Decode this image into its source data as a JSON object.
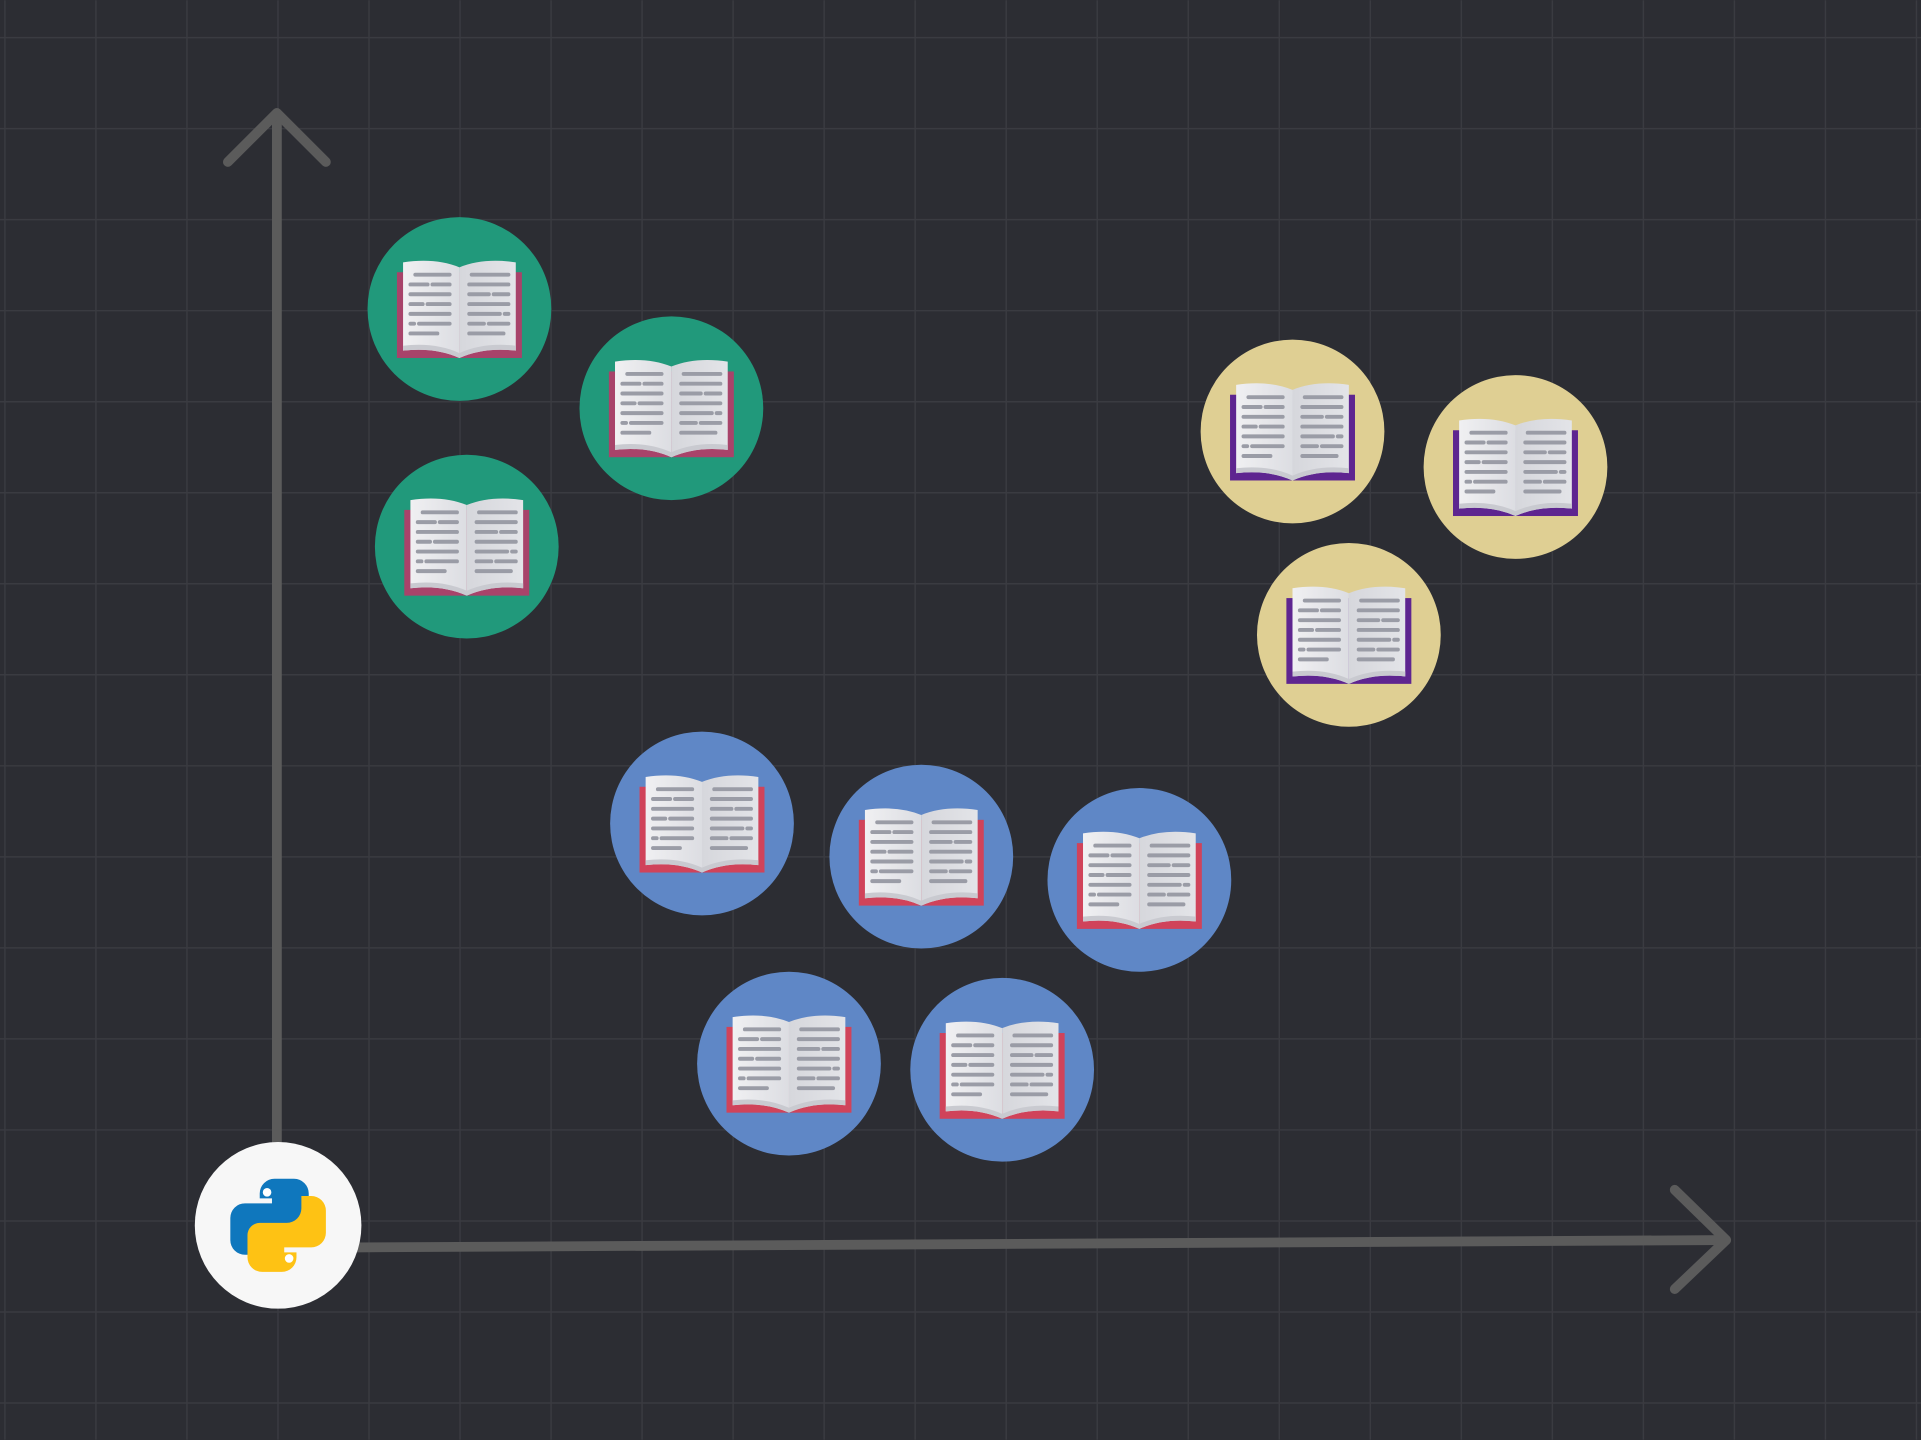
{
  "diagram": {
    "background_color": "#2c2d33",
    "grid_color": "#3a3b41",
    "axis_color": "#5b5b5b",
    "origin_icon": "python-logo-icon",
    "python_colors": {
      "blue": "#0f77bd",
      "yellow": "#fec214",
      "badge": "#f7f7f7"
    },
    "page_color": "#e6e7eb",
    "text_line_color": "#9a9ca6",
    "clusters": [
      {
        "icon": "open-book-icon",
        "count": 3,
        "circle_color": "#21997b",
        "cover_color": "#a8436a"
      },
      {
        "icon": "open-book-icon",
        "count": 3,
        "circle_color": "#dfcf93",
        "cover_color": "#5e2590"
      },
      {
        "icon": "open-book-icon",
        "count": 5,
        "circle_color": "#5f87c6",
        "cover_color": "#d0435a"
      }
    ]
  }
}
